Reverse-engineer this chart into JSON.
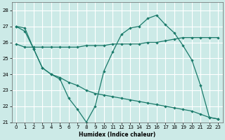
{
  "background_color": "#cceae7",
  "grid_color": "#ffffff",
  "line_color": "#1a7a6a",
  "xlabel": "Humidex (Indice chaleur)",
  "xlim": [
    -0.5,
    23.5
  ],
  "ylim": [
    21.0,
    28.5
  ],
  "yticks": [
    21,
    22,
    23,
    24,
    25,
    26,
    27,
    28
  ],
  "xticks": [
    0,
    1,
    2,
    3,
    4,
    5,
    6,
    7,
    8,
    9,
    10,
    11,
    12,
    13,
    14,
    15,
    16,
    17,
    18,
    19,
    20,
    21,
    22,
    23
  ],
  "line_zigzag_x": [
    0,
    1,
    2,
    3,
    4,
    5,
    6,
    7,
    8,
    9,
    10,
    11,
    12,
    13,
    14,
    15,
    16,
    17,
    18,
    19,
    20,
    21,
    22,
    23
  ],
  "line_zigzag_y": [
    27.0,
    26.9,
    25.6,
    24.4,
    24.0,
    23.7,
    22.5,
    21.8,
    21.0,
    22.0,
    24.2,
    25.4,
    26.5,
    26.9,
    27.0,
    27.5,
    27.7,
    27.1,
    26.6,
    25.8,
    24.9,
    23.3,
    21.3,
    21.2
  ],
  "line_flat_x": [
    0,
    1,
    2,
    3,
    4,
    5,
    6,
    7,
    8,
    9,
    10,
    11,
    12,
    13,
    14,
    15,
    16,
    17,
    18,
    19,
    20,
    21,
    22,
    23
  ],
  "line_flat_y": [
    25.9,
    25.7,
    25.7,
    25.7,
    25.7,
    25.7,
    25.7,
    25.7,
    25.8,
    25.8,
    25.8,
    25.9,
    25.9,
    25.9,
    25.9,
    26.0,
    26.0,
    26.1,
    26.2,
    26.3,
    26.3,
    26.3,
    26.3,
    26.3
  ],
  "line_diag_x": [
    0,
    1,
    2,
    3,
    4,
    5,
    6,
    7,
    8,
    9,
    10,
    11,
    12,
    13,
    14,
    15,
    16,
    17,
    18,
    19,
    20,
    21,
    22,
    23
  ],
  "line_diag_y": [
    27.0,
    26.7,
    25.6,
    24.4,
    24.0,
    23.8,
    23.5,
    23.3,
    23.0,
    22.8,
    22.7,
    22.6,
    22.5,
    22.4,
    22.3,
    22.2,
    22.1,
    22.0,
    21.9,
    21.8,
    21.7,
    21.5,
    21.3,
    21.2
  ]
}
